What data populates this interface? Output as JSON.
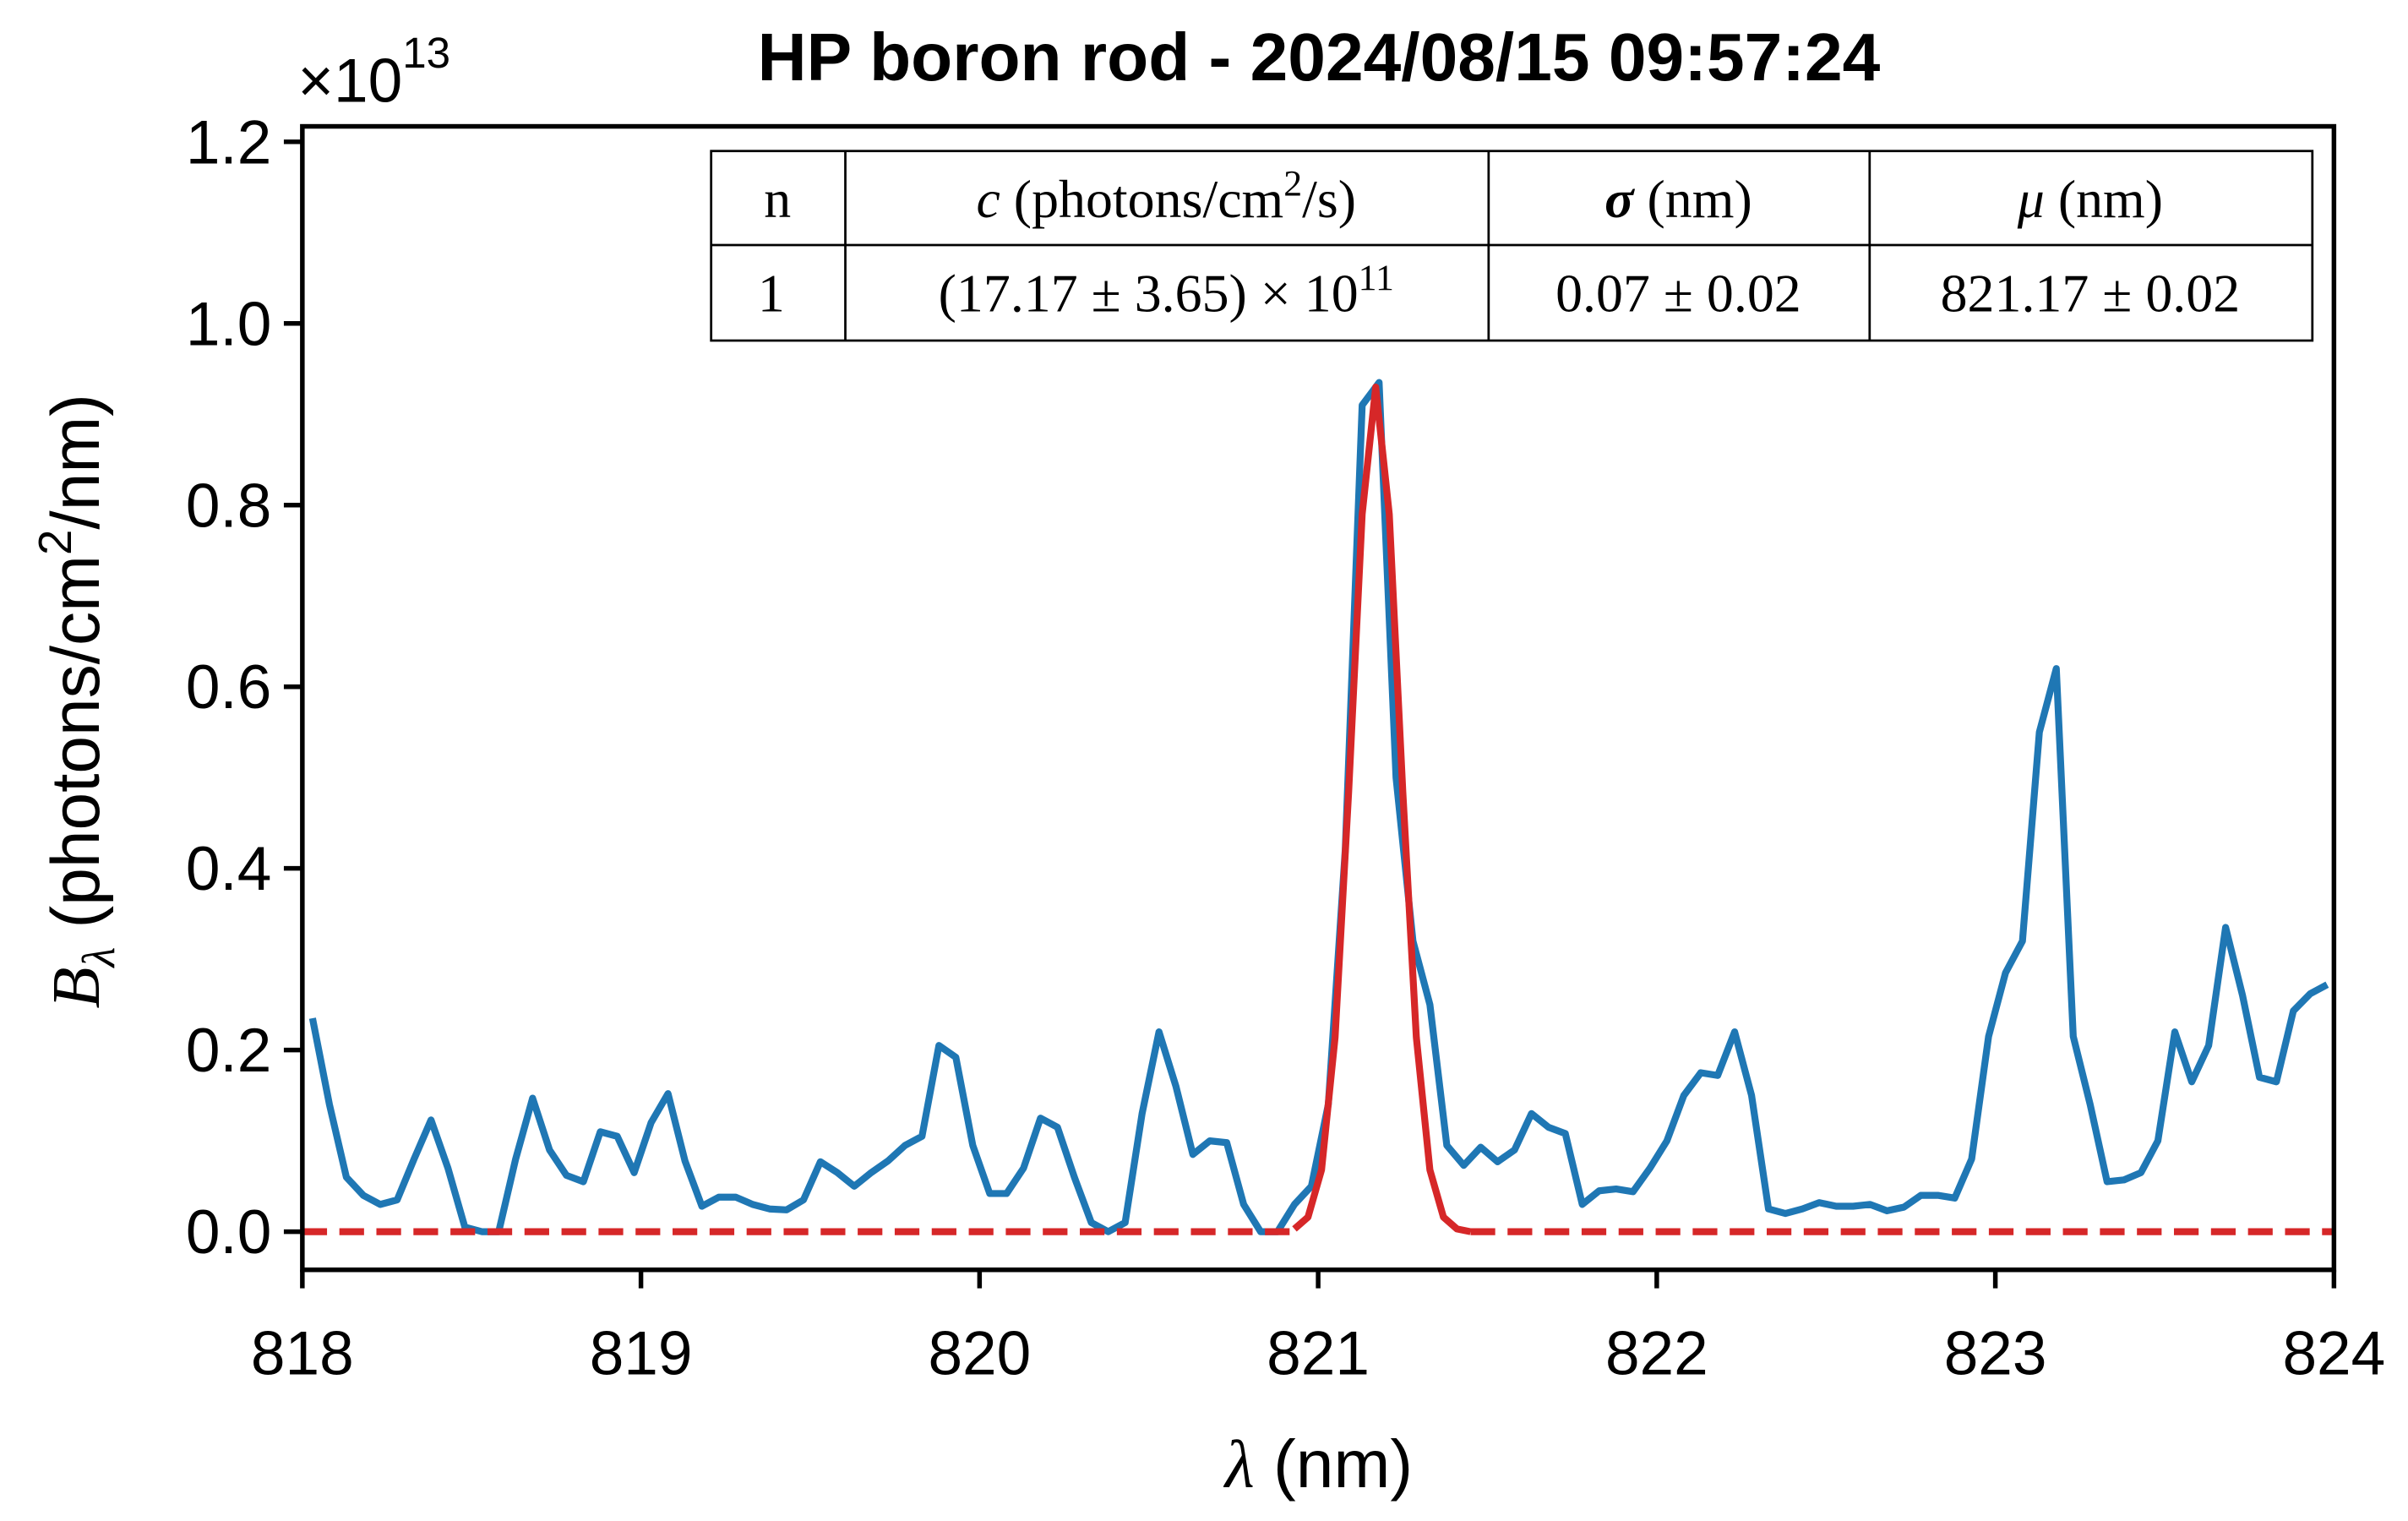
{
  "chart_data": {
    "type": "line",
    "title": "HP boron rod - 2024/08/15 09:57:24",
    "offset_text": [
      "×10",
      "13"
    ],
    "xlabel": [
      "λ",
      " (nm)"
    ],
    "ylabel": [
      "B",
      "λ",
      " (photons/cm",
      "2",
      "/nm)"
    ],
    "xlim": [
      818,
      824
    ],
    "xticks": [
      818,
      819,
      820,
      821,
      822,
      823,
      824
    ],
    "ylim": [
      -0.042,
      1.217
    ],
    "yticks": [
      {
        "value": 0,
        "label": "0.0"
      },
      0.2,
      0.4,
      0.6,
      0.8,
      {
        "value": 1,
        "label": "1.0"
      },
      1.2
    ],
    "table": {
      "header": [
        [
          "n"
        ],
        [
          "c",
          " (photons/cm",
          "2",
          "/s)"
        ],
        [
          "σ",
          " (nm)"
        ],
        [
          "μ",
          " (nm)"
        ]
      ],
      "rows": [
        [
          [
            "1"
          ],
          [
            "(17.17 ± 3.65) × 10",
            "11"
          ],
          [
            "0.07 ± 0.02"
          ],
          [
            "821.17 ± 0.02"
          ]
        ]
      ]
    },
    "series": [
      {
        "color": "#1f77b4",
        "dash": false,
        "x": [
          818.03,
          818.08,
          818.13,
          818.18,
          818.23,
          818.28,
          818.33,
          818.38,
          818.43,
          818.48,
          818.53,
          818.58,
          818.63,
          818.68,
          818.73,
          818.78,
          818.83,
          818.88,
          818.93,
          818.98,
          819.03,
          819.08,
          819.13,
          819.18,
          819.23,
          819.28,
          819.33,
          819.38,
          819.43,
          819.48,
          819.53,
          819.58,
          819.63,
          819.68,
          819.73,
          819.78,
          819.83,
          819.88,
          819.93,
          819.98,
          820.03,
          820.08,
          820.13,
          820.18,
          820.23,
          820.28,
          820.33,
          820.38,
          820.43,
          820.48,
          820.53,
          820.58,
          820.63,
          820.68,
          820.73,
          820.78,
          820.83,
          820.88,
          820.93,
          820.98,
          821.03,
          821.08,
          821.13,
          821.18,
          821.23,
          821.28,
          821.33,
          821.38,
          821.43,
          821.48,
          821.53,
          821.58,
          821.63,
          821.68,
          821.73,
          821.78,
          821.83,
          821.88,
          821.93,
          821.98,
          822.03,
          822.08,
          822.13,
          822.18,
          822.23,
          822.28,
          822.33,
          822.38,
          822.43,
          822.48,
          822.53,
          822.58,
          822.63,
          822.68,
          822.73,
          822.78,
          822.83,
          822.88,
          822.93,
          822.98,
          823.03,
          823.08,
          823.13,
          823.18,
          823.23,
          823.28,
          823.33,
          823.38,
          823.43,
          823.48,
          823.53,
          823.58,
          823.63,
          823.68,
          823.73,
          823.78,
          823.83,
          823.88,
          823.93,
          823.98
        ],
        "values": [
          0.235,
          0.14,
          0.06,
          0.04,
          0.03,
          0.035,
          0.08,
          0.123,
          0.07,
          0.005,
          0,
          0,
          0.08,
          0.147,
          0.09,
          0.062,
          0.055,
          0.11,
          0.105,
          0.065,
          0.12,
          0.152,
          0.078,
          0.028,
          0.038,
          0.038,
          0.03,
          0.025,
          0.024,
          0.035,
          0.077,
          0.065,
          0.05,
          0.065,
          0.078,
          0.095,
          0.105,
          0.205,
          0.192,
          0.095,
          0.042,
          0.042,
          0.07,
          0.125,
          0.115,
          0.06,
          0.01,
          0,
          0.01,
          0.13,
          0.22,
          0.16,
          0.085,
          0.1,
          0.098,
          0.03,
          0,
          0,
          0.03,
          0.05,
          0.14,
          0.42,
          0.91,
          0.935,
          0.5,
          0.32,
          0.25,
          0.095,
          0.073,
          0.093,
          0.077,
          0.09,
          0.13,
          0.115,
          0.108,
          0.03,
          0.045,
          0.047,
          0.044,
          0.07,
          0.1,
          0.15,
          0.175,
          0.172,
          0.22,
          0.15,
          0.025,
          0.02,
          0.025,
          0.032,
          0.028,
          0.028,
          0.03,
          0.023,
          0.027,
          0.04,
          0.04,
          0.037,
          0.08,
          0.215,
          0.285,
          0.32,
          0.55,
          0.62,
          0.215,
          0.14,
          0.055,
          0.057,
          0.065,
          0.1,
          0.22,
          0.165,
          0.205,
          0.335,
          0.26,
          0.17,
          0.165,
          0.243,
          0.262,
          0.272
        ]
      },
      {
        "color": "#d62728",
        "dash": true,
        "x": [
          818,
          820.93
        ],
        "values": [
          0,
          0
        ]
      },
      {
        "color": "#d62728",
        "dash": false,
        "x": [
          820.93,
          820.97,
          821.01,
          821.05,
          821.09,
          821.13,
          821.17,
          821.21,
          821.25,
          821.29,
          821.33,
          821.37,
          821.41,
          821.45
        ],
        "values": [
          0.003,
          0.016,
          0.068,
          0.214,
          0.484,
          0.79,
          0.93,
          0.79,
          0.484,
          0.214,
          0.068,
          0.016,
          0.003,
          0
        ]
      },
      {
        "color": "#d62728",
        "dash": true,
        "x": [
          821.45,
          824
        ],
        "values": [
          0,
          0
        ]
      }
    ]
  }
}
